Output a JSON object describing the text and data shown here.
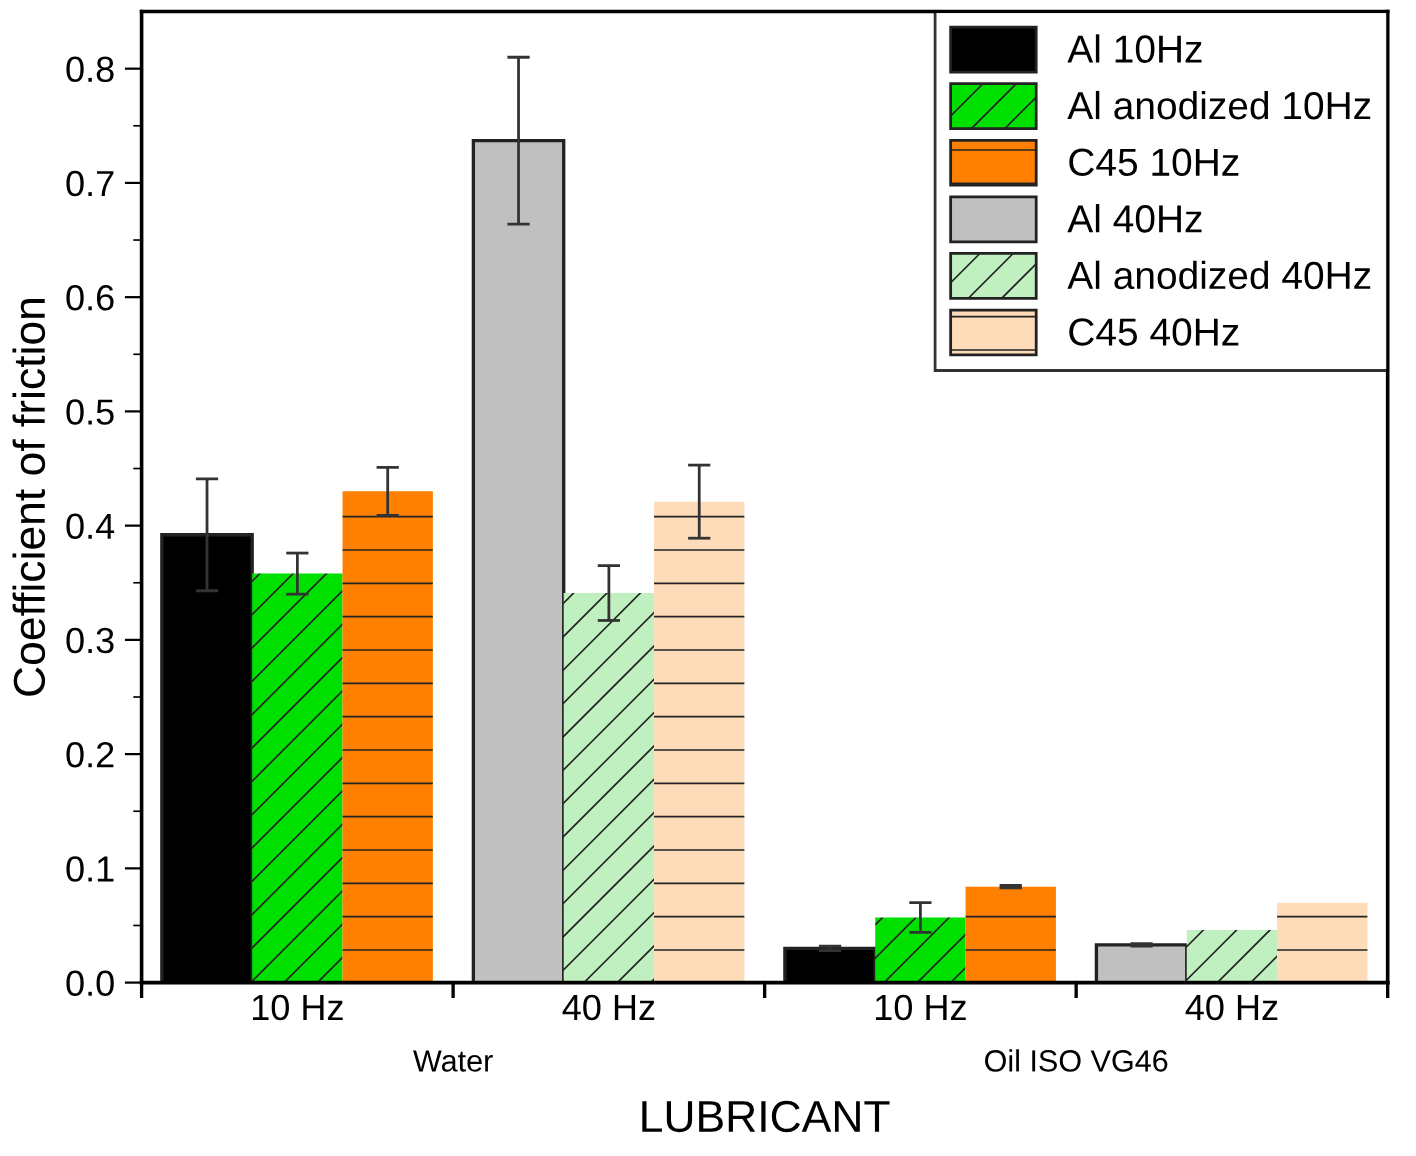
{
  "chart_data": {
    "type": "bar",
    "xlabel": "LUBRICANT",
    "ylabel": "Coefficient of friction",
    "categories": [
      "10 Hz",
      "40 Hz",
      "10 Hz",
      "40 Hz"
    ],
    "series": [
      {
        "name": "Al 10Hz",
        "color": "#000000",
        "values": [
          0.392,
          null,
          0.03,
          null
        ],
        "errors": [
          0.049,
          null,
          0.002,
          null
        ]
      },
      {
        "name": "Al anodized 10Hz",
        "color": "#00e000",
        "values": [
          0.358,
          null,
          0.057,
          null
        ],
        "errors": [
          0.018,
          null,
          0.013,
          null
        ]
      },
      {
        "name": "C45 10Hz",
        "color": "#ff8000",
        "values": [
          0.43,
          null,
          0.084,
          null
        ],
        "errors": [
          0.021,
          null,
          0.001,
          null
        ]
      },
      {
        "name": "Al 40Hz",
        "color": "#c0c0c0",
        "values": [
          null,
          0.737,
          null,
          0.033
        ],
        "errors": [
          null,
          0.073,
          null,
          0.001
        ]
      },
      {
        "name": "Al anodized 40Hz",
        "color": "#c0f0c0",
        "values": [
          null,
          0.341,
          null,
          0.046
        ],
        "errors": [
          null,
          0.024,
          null,
          null
        ]
      },
      {
        "name": "C45 40Hz",
        "color": "#ffdcb9",
        "values": [
          null,
          0.421,
          null,
          0.07
        ],
        "errors": [
          null,
          0.032,
          null,
          null
        ]
      }
    ],
    "ylim": [
      0,
      0.85
    ],
    "yticks": [
      {
        "value": 0,
        "label": "0.0"
      },
      0.1,
      0.2,
      0.3,
      0.4,
      0.5,
      0.6,
      0.7,
      0.8
    ],
    "annotations": [
      "Water",
      "Oil ISO VG46"
    ],
    "legend": "top right"
  }
}
